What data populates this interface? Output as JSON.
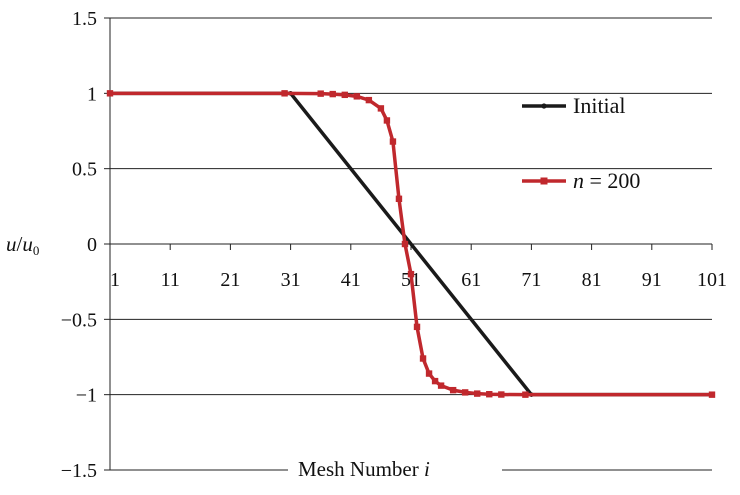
{
  "chart_data": {
    "type": "line",
    "xlabel": "Mesh  Number i",
    "xlabel_main": "Mesh  Number ",
    "xlabel_var": "i",
    "ylabel": "u/u0",
    "ylabel_u": "u",
    "ylabel_slash": "/",
    "ylabel_u0": "u",
    "ylabel_sub": "0",
    "xlim": [
      1,
      101
    ],
    "ylim": [
      -1.5,
      1.5
    ],
    "x_ticks": [
      1,
      11,
      21,
      31,
      41,
      51,
      61,
      71,
      81,
      91,
      101
    ],
    "x_tick_labels": [
      "1",
      "11",
      "21",
      "31",
      "41",
      "51",
      "61",
      "71",
      "81",
      "91",
      "101"
    ],
    "y_ticks": [
      1.5,
      1,
      0.5,
      0,
      -0.5,
      -1,
      -1.5
    ],
    "y_tick_labels": [
      "1.5",
      "1",
      "0.5",
      "0",
      "−0.5",
      "−1",
      "−1.5"
    ],
    "grid": "horizontal",
    "legend_position": "right",
    "series": [
      {
        "name": "Initial",
        "color": "#1a1a1a",
        "marker": "small-dot",
        "x": [
          1,
          31,
          71,
          101
        ],
        "y": [
          1,
          1,
          -1,
          -1
        ]
      },
      {
        "name": "n = 200",
        "legend_var": "n",
        "legend_rest": " = 200",
        "color": "#c0282d",
        "marker": "square",
        "x": [
          1,
          30,
          36,
          38,
          40,
          42,
          44,
          46,
          47,
          48,
          49,
          50,
          51,
          52,
          53,
          54,
          55,
          56,
          58,
          60,
          62,
          64,
          66,
          70,
          101
        ],
        "y": [
          1,
          1,
          0.998,
          0.995,
          0.99,
          0.98,
          0.955,
          0.9,
          0.82,
          0.68,
          0.3,
          0.0,
          -0.2,
          -0.55,
          -0.76,
          -0.86,
          -0.91,
          -0.94,
          -0.97,
          -0.985,
          -0.993,
          -0.997,
          -0.999,
          -1,
          -1
        ]
      }
    ]
  }
}
